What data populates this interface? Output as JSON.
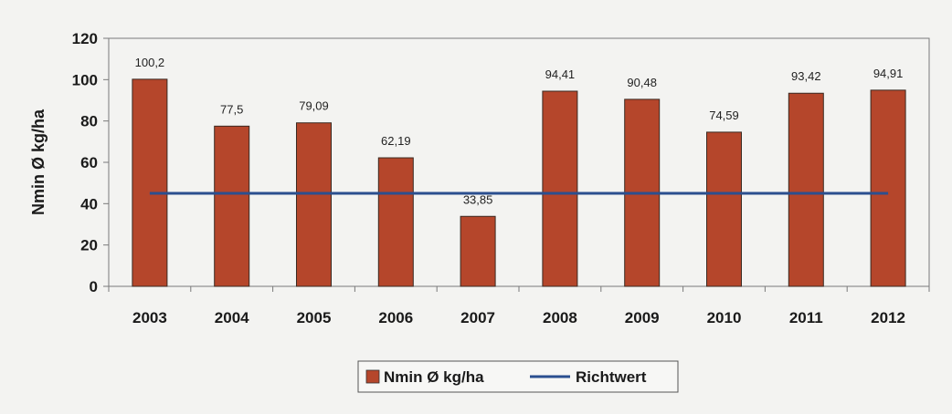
{
  "chart_data": {
    "type": "bar",
    "categories": [
      "2003",
      "2004",
      "2005",
      "2006",
      "2007",
      "2008",
      "2009",
      "2010",
      "2011",
      "2012"
    ],
    "series": [
      {
        "name": "Nmin Ø kg/ha",
        "type": "bar",
        "values": [
          100.2,
          77.5,
          79.09,
          62.19,
          33.85,
          94.41,
          90.48,
          74.59,
          93.42,
          94.91
        ],
        "labels": [
          "100,2",
          "77,5",
          "79,09",
          "62,19",
          "33,85",
          "94,41",
          "90,48",
          "74,59",
          "93,42",
          "94,91"
        ],
        "color": "#b5462b"
      },
      {
        "name": "Richtwert",
        "type": "line",
        "values": [
          45,
          45,
          45,
          45,
          45,
          45,
          45,
          45,
          45,
          45
        ],
        "color": "#2b4f8f"
      }
    ],
    "ylabel": "Nmin Ø kg/ha",
    "ylim": [
      0,
      120
    ],
    "yticks": [
      0,
      20,
      40,
      60,
      80,
      100,
      120
    ],
    "grid": false,
    "legend": "bottom"
  }
}
